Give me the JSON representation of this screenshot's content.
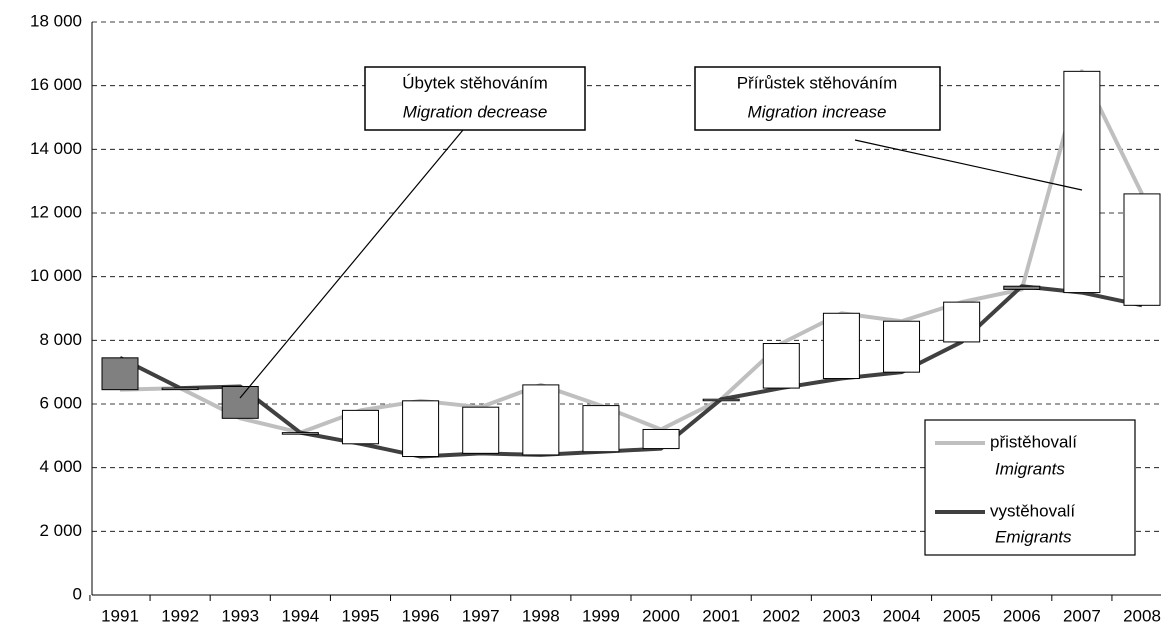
{
  "chart_data": {
    "type": "line",
    "categories": [
      "1991",
      "1992",
      "1993",
      "1994",
      "1995",
      "1996",
      "1997",
      "1998",
      "1999",
      "2000",
      "2001",
      "2002",
      "2003",
      "2004",
      "2005",
      "2006",
      "2007",
      "2008"
    ],
    "series": [
      {
        "name": "přistěhovalí",
        "name_en": "Imigrants",
        "color": "#bfbfbf",
        "values": [
          6450,
          6500,
          5550,
          5100,
          5800,
          6100,
          5900,
          6600,
          5950,
          5200,
          6150,
          7900,
          8850,
          8600,
          9200,
          9600,
          16450,
          12600
        ]
      },
      {
        "name": "vystěhovalí",
        "name_en": "Emigrants",
        "color": "#404040",
        "values": [
          7450,
          6500,
          6550,
          5100,
          4750,
          4350,
          4450,
          4400,
          4500,
          4600,
          6150,
          6500,
          6800,
          7000,
          7950,
          9700,
          9500,
          9100
        ]
      }
    ],
    "ylim": [
      0,
      18000
    ],
    "yticks": [
      0,
      {
        "value": 2000,
        "label": "2 000"
      },
      {
        "value": 4000,
        "label": "4 000"
      },
      {
        "value": 6000,
        "label": "6 000"
      },
      {
        "value": 8000,
        "label": "8 000"
      },
      {
        "value": 10000,
        "label": "10 000"
      },
      {
        "value": 12000,
        "label": "12 000"
      },
      {
        "value": 14000,
        "label": "14 000"
      },
      {
        "value": 16000,
        "label": "16 000"
      },
      {
        "value": 18000,
        "label": "18 000"
      }
    ],
    "grid": true,
    "decrease_color": "#808080",
    "increase_color": "#ffffff",
    "annotations": [
      {
        "text": "Úbytek stěhováním",
        "text_en": "Migration decrease"
      },
      {
        "text": "Přírůstek stěhováním",
        "text_en": "Migration increase"
      }
    ],
    "legend": "lower right"
  }
}
